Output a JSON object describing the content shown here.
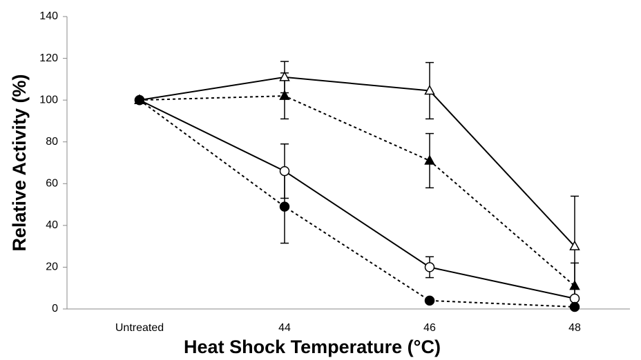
{
  "chart_data": {
    "type": "line",
    "x_label": "Heat Shock Temperature (°C)",
    "y_label": "Relative Activity (%)",
    "categories": [
      "Untreated",
      "44",
      "46",
      "48"
    ],
    "ylim": [
      0,
      140
    ],
    "yticks": [
      0,
      20,
      40,
      60,
      80,
      100,
      120,
      140
    ],
    "grid": false,
    "series": [
      {
        "color": "#000000",
        "marker": "triangle-open",
        "line": "solid",
        "values": [
          100,
          111,
          104.5,
          30
        ],
        "errors": [
          null,
          7.5,
          13.5,
          24
        ]
      },
      {
        "color": "#000000",
        "marker": "triangle-filled",
        "line": "dashed",
        "values": [
          100,
          102,
          71,
          11
        ],
        "errors": [
          null,
          11,
          13,
          11
        ]
      },
      {
        "color": "#000000",
        "marker": "circle-open",
        "line": "solid",
        "values": [
          100,
          66,
          20,
          5
        ],
        "errors": [
          null,
          13,
          5,
          null
        ]
      },
      {
        "color": "#000000",
        "marker": "circle-filled",
        "line": "dashed",
        "values": [
          100,
          49,
          4,
          1
        ],
        "errors": [
          null,
          17.5,
          null,
          null
        ]
      }
    ]
  }
}
